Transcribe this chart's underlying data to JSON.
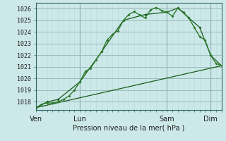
{
  "background_color": "#cce8e8",
  "grid_color_major": "#99bbbb",
  "grid_color_minor": "#bbdddd",
  "line_color_dark": "#1a5c1a",
  "line_color_med": "#2d7a2d",
  "title": "Pression niveau de la mer( hPa )",
  "x_tick_labels": [
    "Ven",
    "Lun",
    "Sam",
    "Dim"
  ],
  "x_tick_positions": [
    0,
    8,
    24,
    32
  ],
  "ylim": [
    1017.3,
    1026.5
  ],
  "yticks": [
    1018,
    1019,
    1020,
    1021,
    1022,
    1023,
    1024,
    1025,
    1026
  ],
  "series1_x": [
    0,
    1,
    2,
    3,
    4,
    5,
    6,
    7,
    8,
    9,
    10,
    11,
    12,
    13,
    14,
    15,
    16,
    17,
    18,
    19,
    20,
    21,
    22,
    23,
    24,
    25,
    26,
    27,
    28,
    29,
    30,
    31,
    32,
    33,
    34
  ],
  "series1_y": [
    1017.5,
    1017.8,
    1017.9,
    1017.9,
    1018.0,
    1018.2,
    1018.5,
    1019.0,
    1019.7,
    1020.6,
    1020.9,
    1021.6,
    1022.3,
    1023.3,
    1023.8,
    1024.1,
    1025.0,
    1025.5,
    1025.75,
    1025.45,
    1025.2,
    1025.9,
    1026.1,
    1025.85,
    1025.7,
    1025.35,
    1026.05,
    1025.7,
    1025.2,
    1024.4,
    1023.6,
    1023.3,
    1022.0,
    1021.3,
    1021.1
  ],
  "series2_x": [
    0,
    2,
    4,
    8,
    12,
    16,
    20,
    24,
    26,
    28,
    30,
    32,
    34
  ],
  "series2_y": [
    1017.5,
    1018.0,
    1018.2,
    1019.7,
    1022.3,
    1025.0,
    1025.5,
    1025.7,
    1026.05,
    1025.2,
    1024.4,
    1022.0,
    1021.1
  ],
  "series3_x": [
    0,
    34
  ],
  "series3_y": [
    1017.5,
    1021.1
  ],
  "vline_positions": [
    0,
    8,
    24,
    32
  ],
  "xlim": [
    0,
    34
  ]
}
